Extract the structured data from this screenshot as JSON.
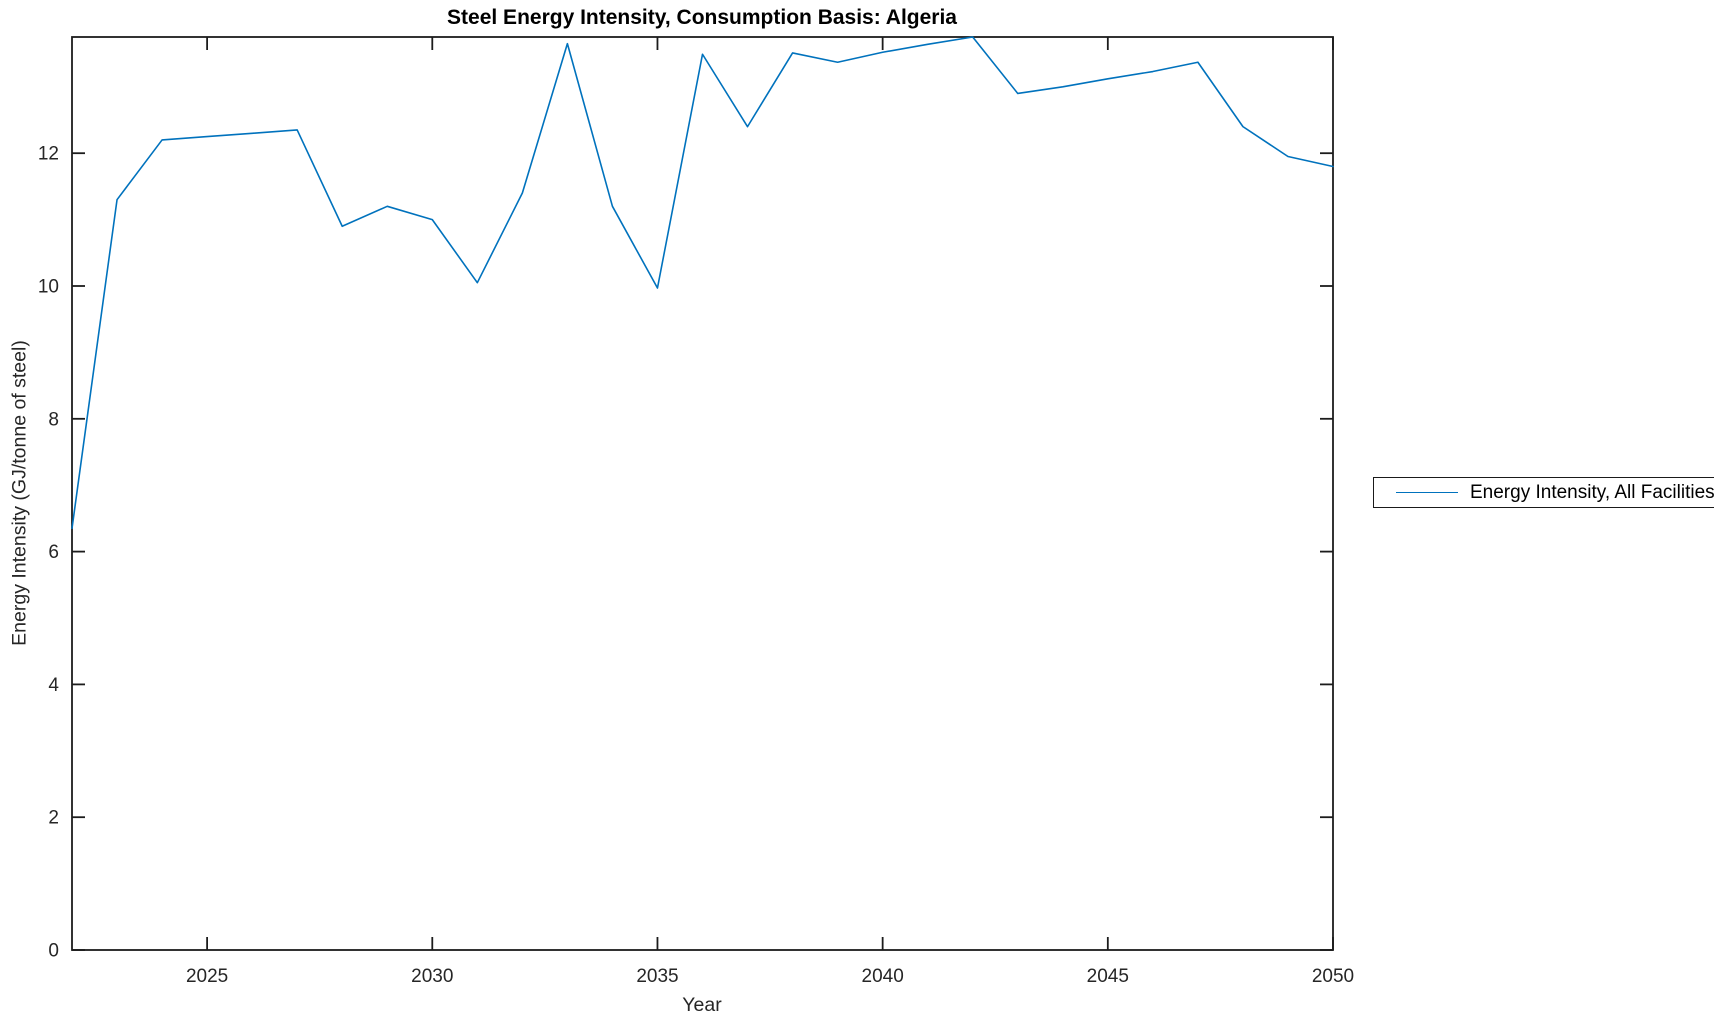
{
  "figure": {
    "title": "Steel Energy Intensity, Consumption Basis: Algeria",
    "xlabel": "Year",
    "ylabel": "Energy Intensity (GJ/tonne of steel)"
  },
  "legend": {
    "entries": [
      {
        "label": "Energy Intensity, All Facilities",
        "color": "#0072BD"
      }
    ]
  },
  "colors": {
    "line": "#0072BD",
    "axis": "#1c1c1c",
    "tick_label": "#262626",
    "background": "#ffffff"
  },
  "chart_data": {
    "type": "line",
    "title": "Steel Energy Intensity, Consumption Basis: Algeria",
    "xlabel": "Year",
    "ylabel": "Energy Intensity (GJ/tonne of steel)",
    "x": [
      2022,
      2023,
      2024,
      2025,
      2026,
      2027,
      2028,
      2029,
      2030,
      2031,
      2032,
      2033,
      2034,
      2035,
      2036,
      2037,
      2038,
      2039,
      2040,
      2041,
      2042,
      2043,
      2044,
      2045,
      2046,
      2047,
      2048,
      2049,
      2050
    ],
    "series": [
      {
        "name": "Energy Intensity, All Facilities",
        "color": "#0072BD",
        "values": [
          6.35,
          11.3,
          12.2,
          12.25,
          12.3,
          12.35,
          10.9,
          11.2,
          11.0,
          10.05,
          11.4,
          13.65,
          11.2,
          9.97,
          13.49,
          12.4,
          13.51,
          13.37,
          13.52,
          13.64,
          13.75,
          12.9,
          13.0,
          13.12,
          13.23,
          13.37,
          12.4,
          11.95,
          11.8
        ]
      }
    ],
    "xlim": [
      2022,
      2050
    ],
    "ylim": [
      0,
      13.75
    ],
    "xticks": [
      2025,
      2030,
      2035,
      2040,
      2045,
      2050
    ],
    "yticks": [
      0,
      2,
      4,
      6,
      8,
      10,
      12
    ],
    "grid": false,
    "box": true,
    "tick_dir": "in",
    "legend_position": "right-outside"
  }
}
